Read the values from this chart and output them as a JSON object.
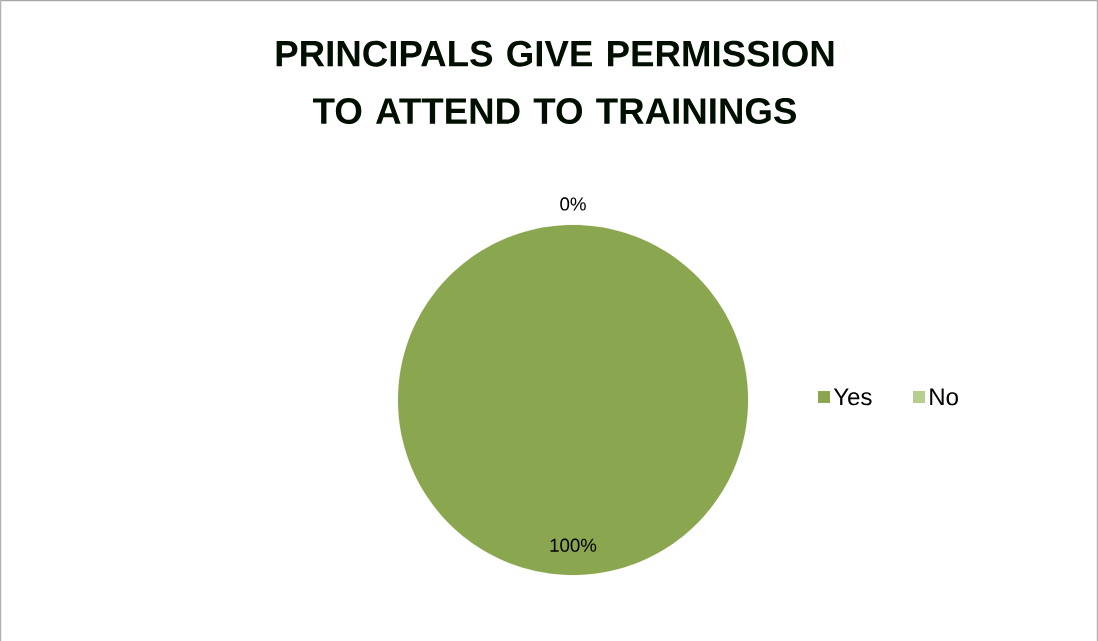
{
  "chart_data": {
    "type": "pie",
    "title": "PRINCIPALS GIVE PERMISSION TO ATTEND TO  TRAININGS",
    "categories": [
      "Yes",
      "No"
    ],
    "values": [
      100,
      0
    ],
    "colors": [
      "#8aa64f",
      "#b6cf8f"
    ],
    "value_labels": [
      "100%",
      "0%"
    ],
    "legend": "right"
  }
}
